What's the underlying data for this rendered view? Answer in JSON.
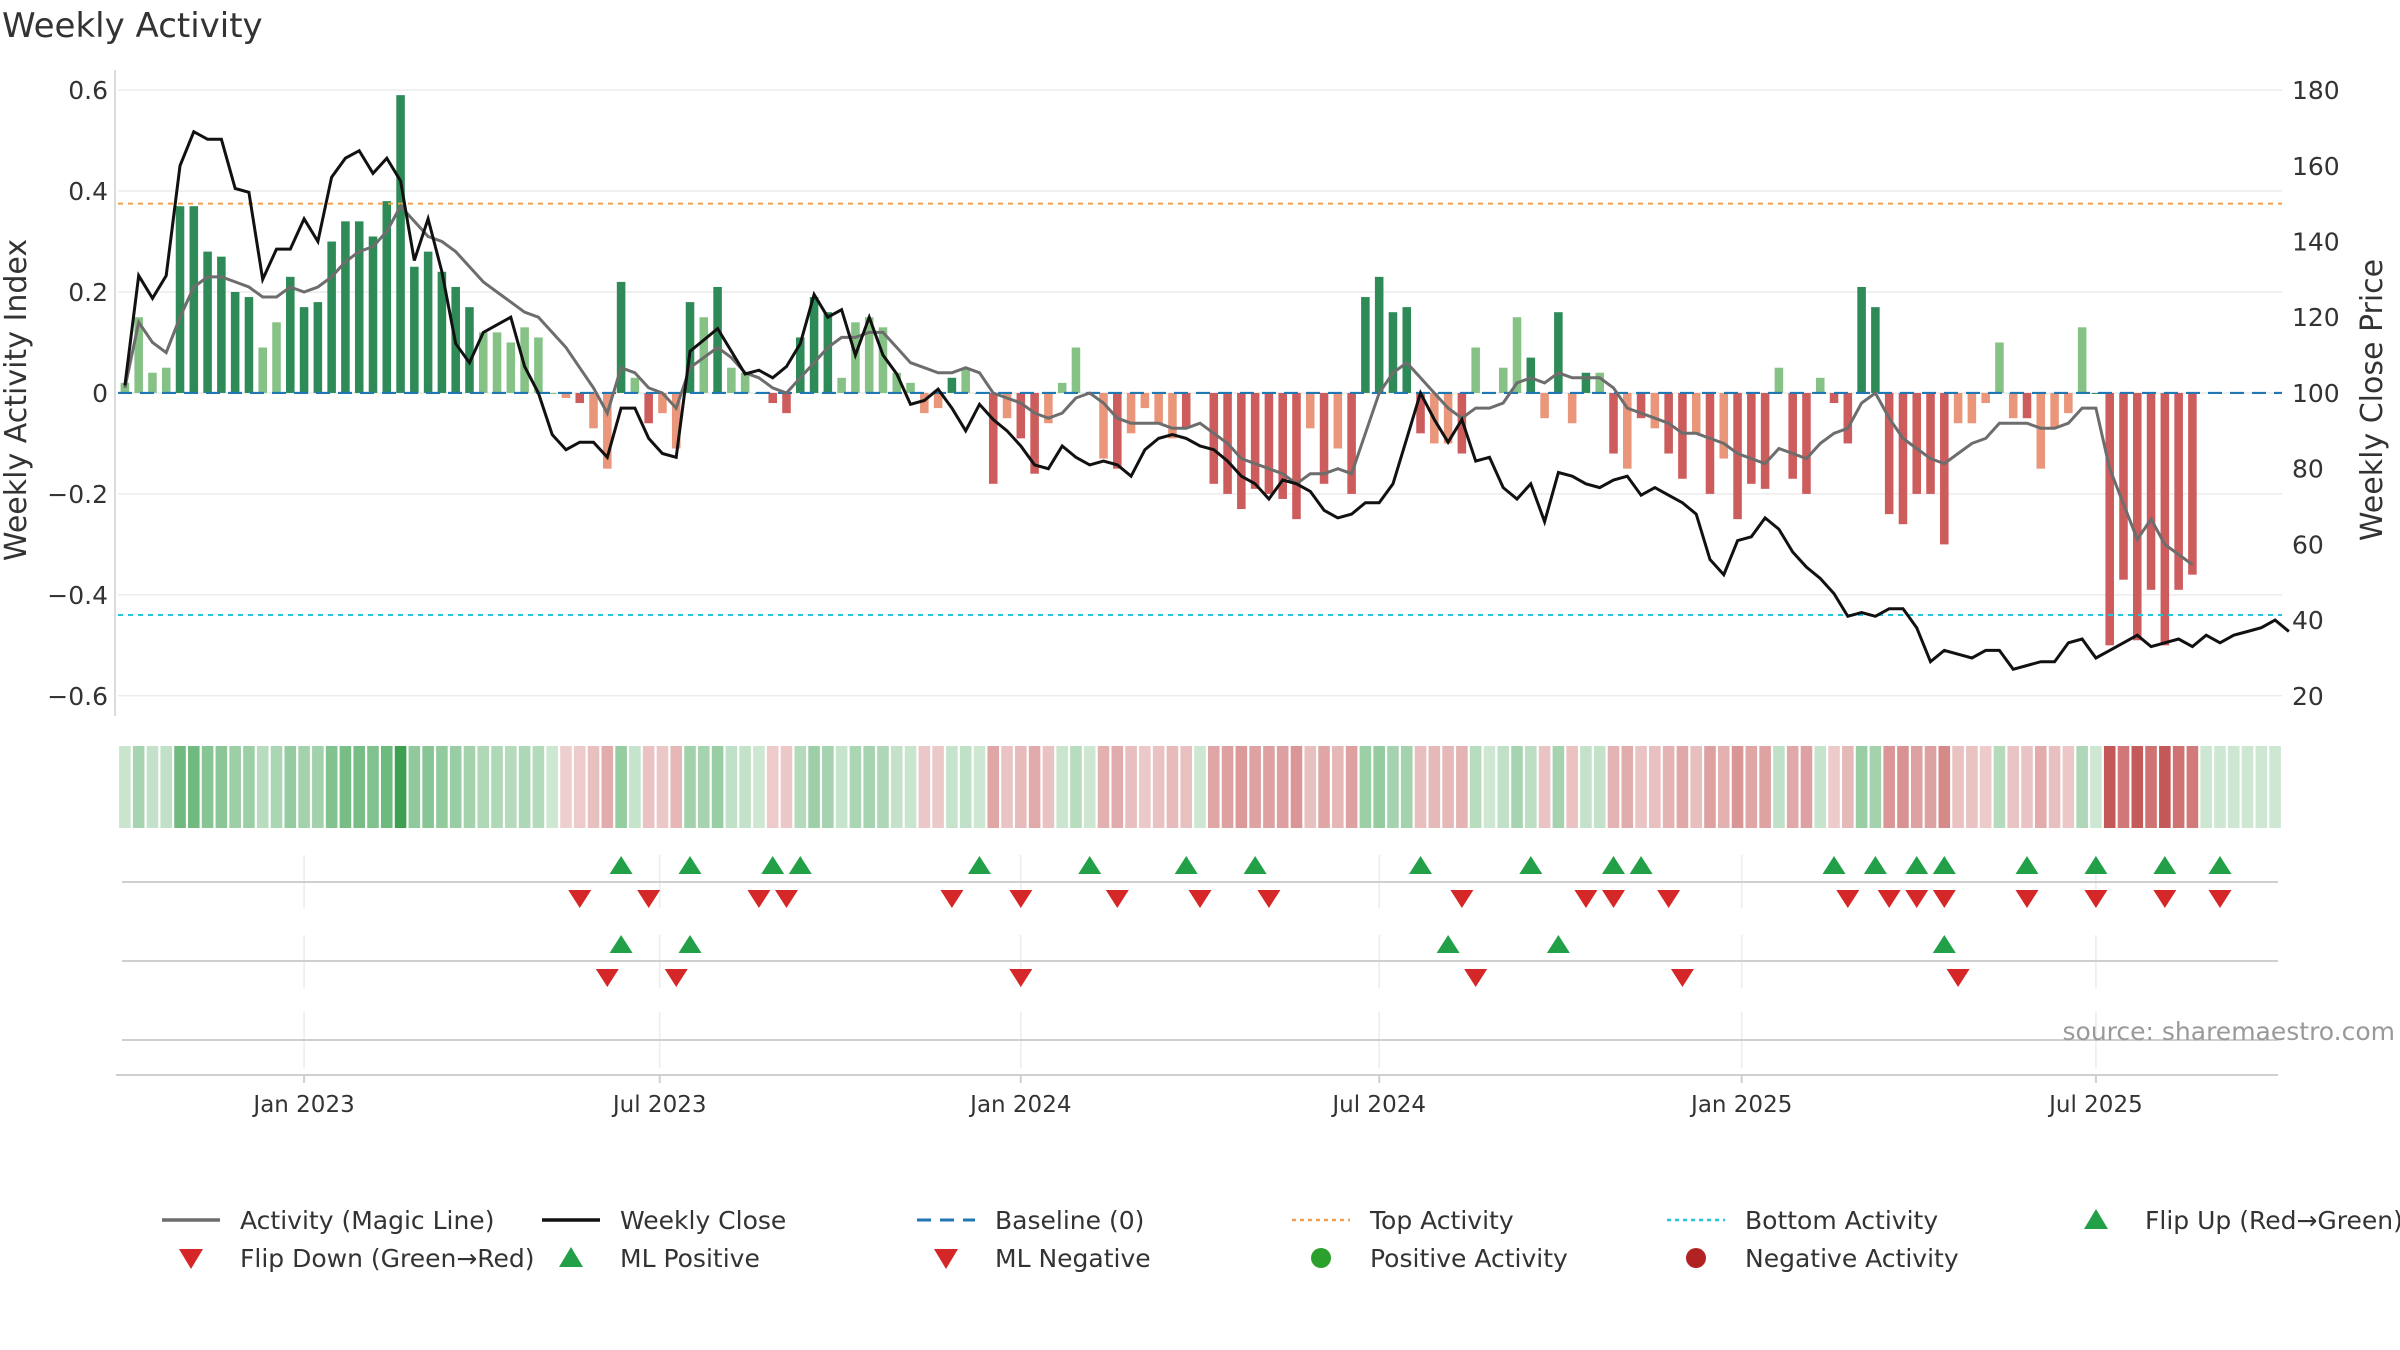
{
  "title": "Weekly Activity",
  "chart_data": {
    "type": "bar",
    "title": "Weekly Activity",
    "ylabel": "Weekly Activity Index",
    "y2label": "Weekly Close Price",
    "ylim": [
      -0.64,
      0.62
    ],
    "y2lim": [
      20,
      180
    ],
    "yticks": [
      0.6,
      0.4,
      0.2,
      0,
      -0.2,
      -0.4,
      -0.6
    ],
    "ytick_labels": [
      "0.6",
      "0.4",
      "0.2",
      "0",
      "−0.2",
      "−0.4",
      "−0.6"
    ],
    "y2ticks": [
      180,
      160,
      140,
      120,
      100,
      80,
      60,
      40,
      20
    ],
    "y2tick_labels": [
      "180",
      "160",
      "140",
      "120",
      "100",
      "80",
      "60",
      "40",
      "20"
    ],
    "x_start": "2022-10-03",
    "x_weeks_span": 157,
    "xticks": [
      "Jan 2023",
      "Jul 2023",
      "Jan 2024",
      "Jul 2024",
      "Jan 2025",
      "Jul 2025"
    ],
    "xtick_weeks": [
      13.0,
      38.8,
      65.0,
      91.0,
      117.3,
      143.0
    ],
    "top_activity": 0.375,
    "bottom_activity": -0.44,
    "source": "source: sharemaestro.com",
    "activity_values": [
      0.02,
      0.15,
      0.04,
      0.05,
      0.37,
      0.37,
      0.28,
      0.27,
      0.2,
      0.19,
      0.09,
      0.14,
      0.23,
      0.17,
      0.18,
      0.3,
      0.34,
      0.34,
      0.31,
      0.38,
      0.59,
      0.25,
      0.28,
      0.24,
      0.21,
      0.17,
      0.12,
      0.12,
      0.1,
      0.13,
      0.11,
      0.0,
      -0.01,
      -0.02,
      -0.07,
      -0.15,
      0.22,
      0.03,
      -0.06,
      -0.04,
      -0.11,
      0.18,
      0.15,
      0.21,
      0.05,
      0.04,
      0.0,
      -0.02,
      -0.04,
      0.11,
      0.19,
      0.16,
      0.03,
      0.14,
      0.15,
      0.13,
      0.04,
      0.02,
      -0.04,
      -0.03,
      0.03,
      0.05,
      0.0,
      -0.18,
      -0.05,
      -0.09,
      -0.16,
      -0.06,
      0.02,
      0.09,
      0.0,
      -0.13,
      -0.15,
      -0.08,
      -0.03,
      -0.06,
      -0.09,
      -0.07,
      0.0,
      -0.18,
      -0.2,
      -0.23,
      -0.19,
      -0.2,
      -0.21,
      -0.25,
      -0.07,
      -0.18,
      -0.11,
      -0.2,
      0.19,
      0.23,
      0.16,
      0.17,
      -0.08,
      -0.1,
      -0.1,
      -0.12,
      0.09,
      0.0,
      0.05,
      0.15,
      0.07,
      -0.05,
      0.16,
      -0.06,
      0.04,
      0.04,
      -0.12,
      -0.15,
      -0.05,
      -0.07,
      -0.12,
      -0.17,
      -0.08,
      -0.2,
      -0.13,
      -0.25,
      -0.18,
      -0.19,
      0.05,
      -0.17,
      -0.2,
      0.03,
      -0.02,
      -0.1,
      0.21,
      0.17,
      -0.24,
      -0.26,
      -0.2,
      -0.2,
      -0.3,
      -0.06,
      -0.06,
      -0.02,
      0.1,
      -0.05,
      -0.05,
      -0.15,
      -0.07,
      -0.04,
      0.13,
      0.0,
      -0.5,
      -0.37,
      -0.49,
      -0.39,
      -0.5,
      -0.39,
      -0.36
    ],
    "magic_line": [
      0.01,
      0.14,
      0.1,
      0.08,
      0.15,
      0.21,
      0.23,
      0.23,
      0.22,
      0.21,
      0.19,
      0.19,
      0.21,
      0.2,
      0.21,
      0.23,
      0.26,
      0.28,
      0.29,
      0.32,
      0.37,
      0.34,
      0.31,
      0.3,
      0.28,
      0.25,
      0.22,
      0.2,
      0.18,
      0.16,
      0.15,
      0.12,
      0.09,
      0.05,
      0.01,
      -0.04,
      0.05,
      0.04,
      0.01,
      0.0,
      -0.03,
      0.05,
      0.07,
      0.09,
      0.07,
      0.04,
      0.03,
      0.01,
      0.0,
      0.03,
      0.06,
      0.09,
      0.11,
      0.11,
      0.12,
      0.12,
      0.09,
      0.06,
      0.05,
      0.04,
      0.04,
      0.05,
      0.04,
      0.0,
      -0.01,
      -0.02,
      -0.04,
      -0.05,
      -0.04,
      -0.01,
      0.0,
      -0.02,
      -0.05,
      -0.06,
      -0.06,
      -0.06,
      -0.07,
      -0.07,
      -0.06,
      -0.08,
      -0.1,
      -0.13,
      -0.14,
      -0.15,
      -0.16,
      -0.18,
      -0.16,
      -0.16,
      -0.15,
      -0.16,
      -0.08,
      0.0,
      0.04,
      0.06,
      0.03,
      0.0,
      -0.03,
      -0.05,
      -0.03,
      -0.03,
      -0.02,
      0.02,
      0.03,
      0.02,
      0.04,
      0.03,
      0.03,
      0.03,
      0.01,
      -0.03,
      -0.04,
      -0.05,
      -0.06,
      -0.08,
      -0.08,
      -0.09,
      -0.1,
      -0.12,
      -0.13,
      -0.14,
      -0.11,
      -0.12,
      -0.13,
      -0.1,
      -0.08,
      -0.07,
      -0.02,
      0.0,
      -0.05,
      -0.09,
      -0.11,
      -0.13,
      -0.14,
      -0.12,
      -0.1,
      -0.09,
      -0.06,
      -0.06,
      -0.06,
      -0.07,
      -0.07,
      -0.06,
      -0.03,
      -0.03,
      -0.15,
      -0.22,
      -0.29,
      -0.25,
      -0.3,
      -0.32,
      -0.34
    ],
    "weekly_close": [
      102,
      131,
      125,
      131,
      160,
      169,
      167,
      167,
      154,
      153,
      130,
      138,
      138,
      146,
      140,
      157,
      162,
      164,
      158,
      162,
      156,
      135,
      146,
      132,
      113,
      108,
      116,
      118,
      120,
      107,
      100,
      89,
      85,
      87,
      87,
      83,
      96,
      96,
      88,
      84,
      83,
      111,
      114,
      117,
      111,
      105,
      106,
      104,
      107,
      113,
      126,
      120,
      122,
      110,
      120,
      110,
      105,
      97,
      98,
      101,
      96,
      90,
      97,
      93,
      90,
      86,
      81,
      80,
      86,
      83,
      81,
      82,
      81,
      78,
      85,
      88,
      89,
      88,
      86,
      85,
      82,
      78,
      76,
      72,
      77,
      76,
      74,
      69,
      67,
      68,
      71,
      71,
      76,
      88,
      100,
      93,
      87,
      93,
      82,
      83,
      75,
      72,
      76,
      66,
      79,
      78,
      76,
      75,
      77,
      78,
      73,
      75,
      73,
      71,
      68,
      56,
      52,
      61,
      62,
      67,
      64,
      58,
      54,
      51,
      47,
      41,
      42,
      41,
      43,
      43,
      38,
      29,
      32,
      31,
      30,
      32,
      32,
      27,
      28,
      29,
      29,
      34,
      35,
      30,
      32,
      34,
      36,
      33,
      34,
      35,
      33,
      36,
      34,
      36,
      37,
      38,
      40,
      37
    ],
    "flip_up_weeks": [
      36,
      41,
      47,
      49,
      62,
      70,
      77,
      82,
      94,
      102,
      108,
      110,
      124,
      127,
      130,
      132,
      138,
      143,
      148,
      152
    ],
    "flip_down_weeks": [
      33,
      38,
      46,
      48,
      60,
      65,
      72,
      78,
      83,
      97,
      106,
      108,
      112,
      125,
      128,
      130,
      132,
      138,
      143,
      148,
      152
    ],
    "ml_positive_weeks": [
      36,
      41,
      96,
      104,
      132
    ],
    "ml_negative_weeks": [
      35,
      40,
      65,
      98,
      113,
      133
    ],
    "heatstrip_weeks": 157
  },
  "legend": [
    {
      "label": "Activity (Magic Line)",
      "type": "line",
      "color": "#6d6d6d"
    },
    {
      "label": "Weekly Close",
      "type": "line",
      "color": "#111111"
    },
    {
      "label": "Baseline (0)",
      "type": "dash",
      "color": "#1f77b4"
    },
    {
      "label": "Top Activity",
      "type": "dot-orange",
      "color": "#f0a050"
    },
    {
      "label": "Bottom Activity",
      "type": "dot-cyan",
      "color": "#26c6da"
    },
    {
      "label": "Flip Up (Red→Green)",
      "type": "tri-up",
      "color": "#22a047"
    },
    {
      "label": "Flip Down (Green→Red)",
      "type": "tri-down",
      "color": "#d62728"
    },
    {
      "label": "ML Positive",
      "type": "tri-up",
      "color": "#22a047"
    },
    {
      "label": "ML Negative",
      "type": "tri-down",
      "color": "#d62728"
    },
    {
      "label": "Positive Activity",
      "type": "circle",
      "color": "#2ca02c"
    },
    {
      "label": "Negative Activity",
      "type": "circle",
      "color": "#b22222"
    }
  ]
}
